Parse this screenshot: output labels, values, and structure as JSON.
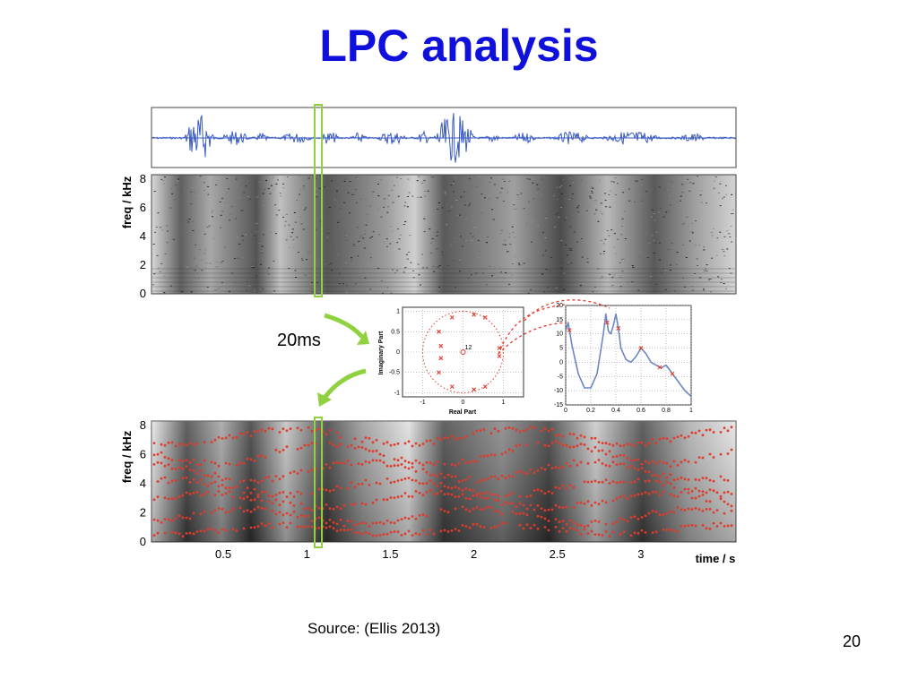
{
  "slide": {
    "title": "LPC analysis",
    "source": "Source: (Ellis 2013)",
    "page_number": "20",
    "frame_label": "20ms"
  },
  "colors": {
    "title": "#1010dd",
    "waveform": "#3a5bc0",
    "formant_points": "#e23a2a",
    "highlight": "#8fd13f",
    "envelope_curve": "#6d86c4"
  },
  "chart_data": [
    {
      "type": "line",
      "name": "waveform",
      "xlim": [
        0,
        3.5
      ],
      "title": "",
      "xlabel": "",
      "ylabel": ""
    },
    {
      "type": "heatmap",
      "name": "spectrogram",
      "ylabel": "freq / kHz",
      "yticks": [
        "0",
        "2",
        "4",
        "6",
        "8"
      ],
      "ylim": [
        0,
        8
      ],
      "xlim": [
        0,
        3.5
      ]
    },
    {
      "type": "scatter",
      "name": "pole-zero",
      "xlabel": "Real Part",
      "ylabel": "Imaginary Part",
      "xticks": [
        "-1",
        "0",
        "1"
      ],
      "yticks": [
        "-1",
        "-0.5",
        "0",
        "0.5",
        "1"
      ],
      "xlim": [
        -1.5,
        1.5
      ],
      "ylim": [
        -1.1,
        1.1
      ],
      "annotation": "12",
      "poles": [
        {
          "x": -0.27,
          "y": 0.85
        },
        {
          "x": -0.27,
          "y": -0.85
        },
        {
          "x": 0.27,
          "y": 0.92
        },
        {
          "x": 0.27,
          "y": -0.92
        },
        {
          "x": 0.55,
          "y": 0.85
        },
        {
          "x": 0.55,
          "y": -0.85
        },
        {
          "x": -0.6,
          "y": 0.5
        },
        {
          "x": -0.6,
          "y": -0.5
        },
        {
          "x": 0.9,
          "y": 0.1
        },
        {
          "x": 0.9,
          "y": -0.1
        },
        {
          "x": -0.55,
          "y": 0.15
        },
        {
          "x": -0.55,
          "y": -0.15
        }
      ]
    },
    {
      "type": "line",
      "name": "lpc-envelope",
      "xticks": [
        "0",
        "0.2",
        "0.4",
        "0.6",
        "0.8",
        "1"
      ],
      "yticks": [
        "20",
        "15",
        "10",
        "5",
        "0",
        "-5",
        "-10",
        "-15"
      ],
      "xlim": [
        0,
        1
      ],
      "ylim": [
        -15,
        20
      ],
      "x": [
        0,
        0.02,
        0.05,
        0.1,
        0.15,
        0.2,
        0.25,
        0.3,
        0.32,
        0.34,
        0.36,
        0.38,
        0.4,
        0.42,
        0.44,
        0.48,
        0.52,
        0.56,
        0.6,
        0.64,
        0.68,
        0.72,
        0.76,
        0.8,
        0.85,
        0.9,
        0.95,
        1.0
      ],
      "y": [
        11,
        14,
        6,
        -4,
        -9,
        -9,
        -4,
        10,
        17,
        11,
        10,
        13,
        17,
        12,
        5,
        1,
        0,
        2,
        5,
        3,
        0,
        -1,
        -2,
        -1,
        -4,
        -7,
        -10,
        -12
      ],
      "markers_x": [
        0.03,
        0.33,
        0.42,
        0.6,
        0.75,
        0.85
      ]
    },
    {
      "type": "heatmap",
      "name": "lpc-spectrogram",
      "ylabel": "freq / kHz",
      "xlabel": "time / s",
      "yticks": [
        "0",
        "2",
        "4",
        "6",
        "8"
      ],
      "xticks": [
        "0.5",
        "1",
        "1.5",
        "2",
        "2.5",
        "3"
      ],
      "ylim": [
        0,
        8
      ],
      "xlim": [
        0,
        3.5
      ]
    }
  ]
}
